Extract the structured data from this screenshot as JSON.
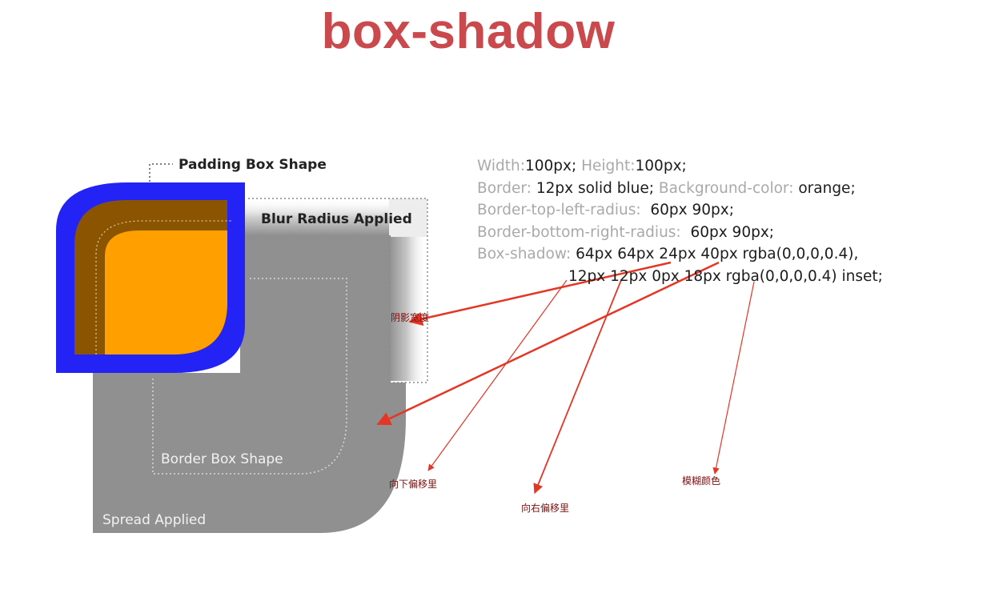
{
  "title": "box-shadow",
  "diagram": {
    "labels": {
      "padding_box_shape": "Padding Box Shape",
      "blur_radius_applied": "Blur Radius Applied",
      "border_box_shape": "Border Box Shape",
      "spread_applied": "Spread Applied"
    },
    "colors": {
      "border": "#2323f5",
      "background": "#ffa000",
      "inset_shadow": "#8a5400",
      "spread_shadow": "#909090",
      "arrow": "#e53524",
      "title": "#c9494c"
    }
  },
  "code": {
    "line1": {
      "k1": "Width:",
      "v1": "100px;",
      "k2": "Height:",
      "v2": "100px;"
    },
    "line2": {
      "k1": "Border:",
      "v1": "12px solid blue;",
      "k2": "Background-color:",
      "v2": "orange;"
    },
    "line3": {
      "k1": "Border-top-left-radius:",
      "v1": "60px 90px;"
    },
    "line4": {
      "k1": "Border-bottom-right-radius:",
      "v1": "60px 90px;"
    },
    "line5": {
      "k1": "Box-shadow:",
      "v1": "64px 64px 24px 40px rgba(0,0,0,0.4),"
    },
    "line6": {
      "v1": "12px 12px 0px 18px rgba(0,0,0,0.4) inset;"
    }
  },
  "annotations": {
    "shadow_width": "阴影宽度",
    "offset_down": "向下偏移里",
    "offset_right": "向右偏移里",
    "blur_color": "模糊颜色"
  }
}
